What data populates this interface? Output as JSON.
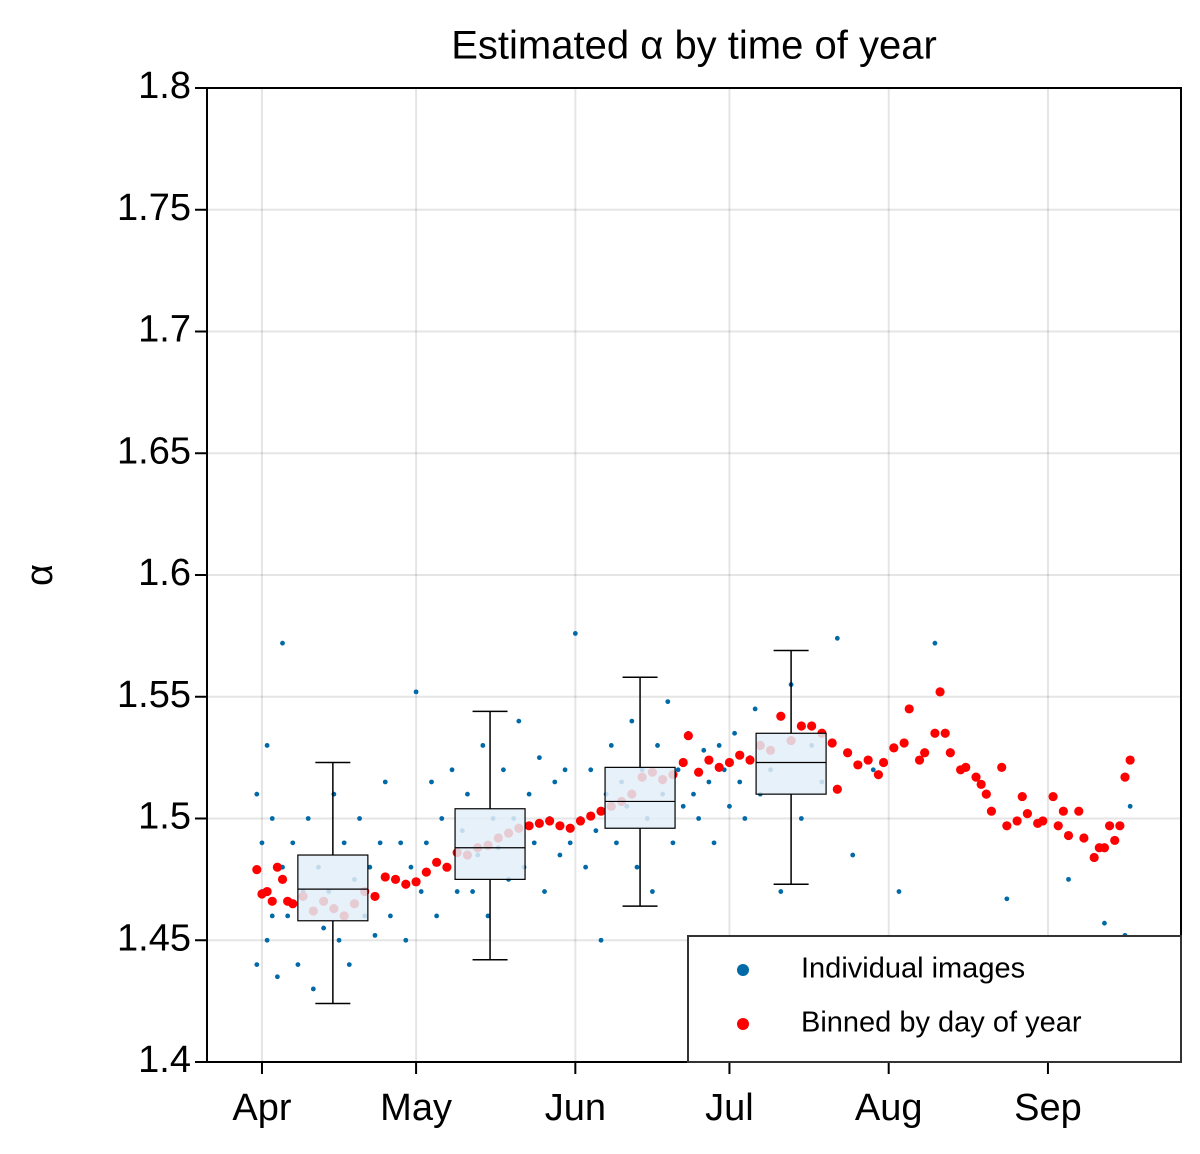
{
  "chart_data": {
    "type": "scatter",
    "title": "Estimated α by time of year",
    "y_label": "α",
    "xlim": [
      80.3,
      269.9
    ],
    "ylim": [
      1.4,
      1.8
    ],
    "xticks": [
      {
        "value": 91,
        "label": "Apr"
      },
      {
        "value": 121,
        "label": "May"
      },
      {
        "value": 152,
        "label": "Jun"
      },
      {
        "value": 182,
        "label": "Jul"
      },
      {
        "value": 213,
        "label": "Aug"
      },
      {
        "value": 244,
        "label": "Sep"
      }
    ],
    "yticks": [
      1.4,
      1.45,
      1.5,
      1.55,
      1.6,
      1.65,
      1.7,
      1.75,
      1.8
    ],
    "grid": true,
    "legend": "lower right",
    "series": [
      {
        "name": "Individual images",
        "color": "#0069a8",
        "x": [
          90,
          90,
          91,
          91,
          92,
          92,
          93,
          93,
          94,
          95,
          95,
          96,
          97,
          98,
          99,
          100,
          101,
          102,
          103,
          104,
          105,
          106,
          107,
          108,
          109,
          110,
          111,
          112,
          113,
          114,
          115,
          116,
          117,
          118,
          119,
          120,
          121,
          122,
          123,
          124,
          125,
          126,
          127,
          128,
          129,
          130,
          131,
          132,
          133,
          134,
          135,
          136,
          137,
          138,
          139,
          140,
          141,
          142,
          143,
          144,
          145,
          146,
          147,
          148,
          149,
          150,
          151,
          152,
          153,
          154,
          155,
          156,
          157,
          158,
          159,
          160,
          161,
          162,
          163,
          164,
          165,
          166,
          167,
          168,
          169,
          170,
          171,
          172,
          173,
          174,
          175,
          176,
          177,
          178,
          179,
          180,
          181,
          182,
          183,
          184,
          185,
          186,
          187,
          188,
          190,
          192,
          194,
          196,
          198,
          200,
          203,
          206,
          210,
          215,
          222,
          236,
          248,
          255,
          259,
          260
        ],
        "values": [
          1.51,
          1.44,
          1.49,
          1.47,
          1.53,
          1.45,
          1.5,
          1.46,
          1.435,
          1.48,
          1.572,
          1.46,
          1.49,
          1.44,
          1.47,
          1.5,
          1.43,
          1.48,
          1.455,
          1.47,
          1.51,
          1.45,
          1.49,
          1.44,
          1.475,
          1.5,
          1.46,
          1.48,
          1.452,
          1.49,
          1.515,
          1.46,
          1.475,
          1.49,
          1.45,
          1.48,
          1.552,
          1.47,
          1.49,
          1.515,
          1.46,
          1.5,
          1.48,
          1.52,
          1.47,
          1.495,
          1.51,
          1.47,
          1.485,
          1.53,
          1.46,
          1.5,
          1.488,
          1.52,
          1.475,
          1.5,
          1.54,
          1.48,
          1.51,
          1.49,
          1.525,
          1.47,
          1.5,
          1.515,
          1.485,
          1.52,
          1.49,
          1.576,
          1.5,
          1.48,
          1.52,
          1.495,
          1.45,
          1.51,
          1.53,
          1.49,
          1.515,
          1.505,
          1.54,
          1.48,
          1.52,
          1.5,
          1.47,
          1.53,
          1.51,
          1.548,
          1.49,
          1.52,
          1.505,
          1.535,
          1.51,
          1.5,
          1.528,
          1.515,
          1.49,
          1.53,
          1.52,
          1.505,
          1.535,
          1.515,
          1.5,
          1.525,
          1.545,
          1.51,
          1.52,
          1.47,
          1.555,
          1.5,
          1.53,
          1.515,
          1.574,
          1.485,
          1.52,
          1.47,
          1.572,
          1.467,
          1.475,
          1.457,
          1.452,
          1.505
        ]
      },
      {
        "name": "Binned by day of year",
        "color": "#ff0000",
        "x": [
          90,
          91,
          92,
          93,
          94,
          95,
          96,
          97,
          99,
          101,
          103,
          105,
          107,
          109,
          111,
          113,
          115,
          117,
          119,
          121,
          123,
          125,
          127,
          129,
          131,
          133,
          135,
          137,
          139,
          141,
          143,
          145,
          147,
          149,
          151,
          153,
          155,
          157,
          159,
          161,
          163,
          165,
          167,
          169,
          171,
          173,
          174,
          176,
          178,
          180,
          182,
          184,
          186,
          188,
          190,
          192,
          194,
          196,
          198,
          200,
          202,
          203,
          205,
          207,
          209,
          211,
          212,
          214,
          216,
          217,
          219,
          220,
          222,
          223,
          224,
          225,
          227,
          228,
          230,
          231,
          232,
          233,
          235,
          236,
          238,
          239,
          240,
          242,
          243,
          245,
          246,
          247,
          248,
          250,
          251,
          253,
          254,
          255,
          256,
          257,
          258,
          259,
          260
        ],
        "values": [
          1.479,
          1.469,
          1.47,
          1.466,
          1.48,
          1.475,
          1.466,
          1.465,
          1.468,
          1.462,
          1.466,
          1.463,
          1.46,
          1.465,
          1.47,
          1.468,
          1.476,
          1.475,
          1.473,
          1.474,
          1.478,
          1.482,
          1.48,
          1.486,
          1.485,
          1.488,
          1.489,
          1.492,
          1.494,
          1.496,
          1.497,
          1.498,
          1.499,
          1.497,
          1.496,
          1.499,
          1.501,
          1.503,
          1.505,
          1.507,
          1.51,
          1.517,
          1.519,
          1.516,
          1.518,
          1.523,
          1.534,
          1.519,
          1.524,
          1.521,
          1.523,
          1.526,
          1.524,
          1.53,
          1.528,
          1.542,
          1.532,
          1.538,
          1.538,
          1.535,
          1.531,
          1.512,
          1.527,
          1.522,
          1.524,
          1.518,
          1.523,
          1.529,
          1.531,
          1.545,
          1.524,
          1.527,
          1.535,
          1.552,
          1.535,
          1.527,
          1.52,
          1.521,
          1.517,
          1.514,
          1.51,
          1.503,
          1.521,
          1.497,
          1.499,
          1.509,
          1.502,
          1.498,
          1.499,
          1.509,
          1.497,
          1.503,
          1.493,
          1.503,
          1.492,
          1.484,
          1.488,
          1.488,
          1.497,
          1.491,
          1.497,
          1.517,
          1.524
        ]
      }
    ],
    "boxes": [
      {
        "x": 104.8,
        "whislo": 1.424,
        "q1": 1.458,
        "med": 1.471,
        "q3": 1.485,
        "whishi": 1.523
      },
      {
        "x": 135.4,
        "whislo": 1.442,
        "q1": 1.475,
        "med": 1.488,
        "q3": 1.504,
        "whishi": 1.544
      },
      {
        "x": 164.6,
        "whislo": 1.464,
        "q1": 1.496,
        "med": 1.507,
        "q3": 1.521,
        "whishi": 1.558
      },
      {
        "x": 194,
        "whislo": 1.473,
        "q1": 1.51,
        "med": 1.523,
        "q3": 1.535,
        "whishi": 1.569
      }
    ]
  }
}
